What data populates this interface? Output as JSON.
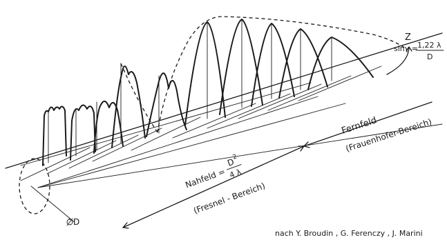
{
  "labels": {
    "z_axis": "Z",
    "divergence_formula_lhs": "sinγ =",
    "divergence_formula_num": "1,22 λ",
    "divergence_formula_den": "D",
    "farfield_title": "Fernfeld",
    "farfield_sub": "(Frauenhofer-Bereich)",
    "nearfield_prefix": "Nahfeld =",
    "nearfield_num": "D",
    "nearfield_exp": "2",
    "nearfield_den": "4 λ",
    "nearfield_sub": "(Fresnel - Bereich)",
    "aperture_diameter": "D",
    "credit": "nach Y. Broudin , G. Ferenczy , J. Marini"
  }
}
